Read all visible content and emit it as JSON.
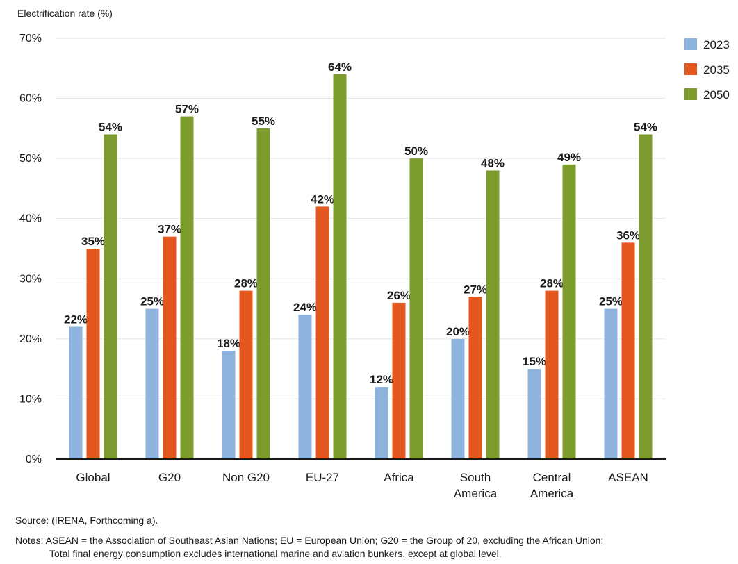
{
  "chart_data": {
    "type": "bar",
    "ylabel": "Electrification rate (%)",
    "ylim": [
      0,
      70
    ],
    "yticks": [
      "0%",
      "10%",
      "20%",
      "30%",
      "40%",
      "50%",
      "60%",
      "70%"
    ],
    "ytick_values": [
      0,
      10,
      20,
      30,
      40,
      50,
      60,
      70
    ],
    "grid": true,
    "legend_position": "top-right",
    "categories": [
      "Global",
      "G20",
      "Non G20",
      "EU-27",
      "Africa",
      "South America",
      "Central America",
      "ASEAN"
    ],
    "category_lines": [
      [
        "Global"
      ],
      [
        "G20"
      ],
      [
        "Non G20"
      ],
      [
        "EU-27"
      ],
      [
        "Africa"
      ],
      [
        "South",
        "America"
      ],
      [
        "Central",
        "America"
      ],
      [
        "ASEAN"
      ]
    ],
    "series": [
      {
        "name": "2023",
        "color": "#8eb4de",
        "values": [
          22,
          25,
          18,
          24,
          12,
          20,
          15,
          25
        ],
        "labels": [
          "22%",
          "25%",
          "18%",
          "24%",
          "12%",
          "20%",
          "15%",
          "25%"
        ]
      },
      {
        "name": "2035",
        "color": "#e4581f",
        "values": [
          35,
          37,
          28,
          42,
          26,
          27,
          28,
          36
        ],
        "labels": [
          "35%",
          "37%",
          "28%",
          "42%",
          "26%",
          "27%",
          "28%",
          "36%"
        ]
      },
      {
        "name": "2050",
        "color": "#7c9b2d",
        "values": [
          54,
          57,
          55,
          64,
          50,
          48,
          49,
          54
        ],
        "labels": [
          "54%",
          "57%",
          "55%",
          "64%",
          "50%",
          "48%",
          "49%",
          "54%"
        ]
      }
    ]
  },
  "footer": {
    "source": "Source: (IRENA, Forthcoming a).",
    "notes_line1": "Notes: ASEAN = the Association of Southeast Asian Nations; EU = European Union; G20 = the Group of 20, excluding the African Union;",
    "notes_line2": "Total final energy consumption excludes international marine and aviation bunkers, except at global level."
  }
}
